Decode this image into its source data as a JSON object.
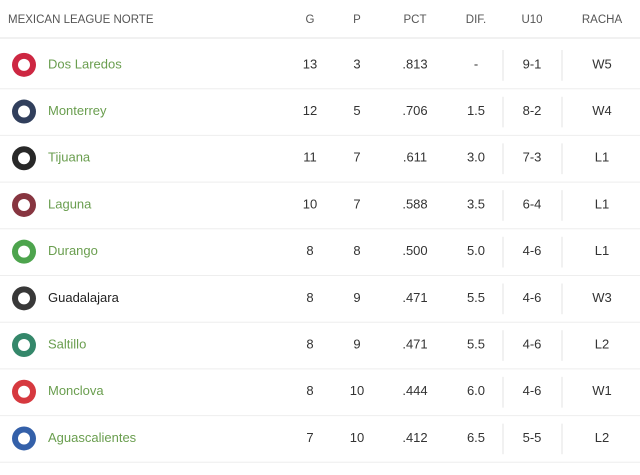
{
  "header": {
    "title": "MEXICAN LEAGUE NORTE",
    "columns": [
      "G",
      "P",
      "PCT",
      "DIF.",
      "U10",
      "RACHA"
    ]
  },
  "table": {
    "rows": [
      {
        "team": "Dos Laredos",
        "color": "#6a9e4f",
        "cells": [
          "13",
          "3",
          ".813",
          "-",
          "9-1",
          "W5"
        ]
      },
      {
        "team": "Monterrey",
        "color": "#6a9e4f",
        "cells": [
          "12",
          "5",
          ".706",
          "1.5",
          "8-2",
          "W4"
        ]
      },
      {
        "team": "Tijuana",
        "color": "#6a9e4f",
        "cells": [
          "11",
          "7",
          ".611",
          "3.0",
          "7-3",
          "L1"
        ]
      },
      {
        "team": "Laguna",
        "color": "#6a9e4f",
        "cells": [
          "10",
          "7",
          ".588",
          "3.5",
          "6-4",
          "L1"
        ]
      },
      {
        "team": "Durango",
        "color": "#6a9e4f",
        "cells": [
          "8",
          "8",
          ".500",
          "5.0",
          "4-6",
          "L1"
        ]
      },
      {
        "team": "Guadalajara",
        "color": "#222222",
        "cells": [
          "8",
          "9",
          ".471",
          "5.5",
          "4-6",
          "W3"
        ]
      },
      {
        "team": "Saltillo",
        "color": "#6a9e4f",
        "cells": [
          "8",
          "9",
          ".471",
          "5.5",
          "4-6",
          "L2"
        ]
      },
      {
        "team": "Monclova",
        "color": "#6a9e4f",
        "cells": [
          "8",
          "10",
          ".444",
          "6.0",
          "4-6",
          "W1"
        ]
      },
      {
        "team": "Aguascalientes",
        "color": "#6a9e4f",
        "cells": [
          "7",
          "10",
          ".412",
          "6.5",
          "5-5",
          "L2"
        ]
      }
    ]
  }
}
